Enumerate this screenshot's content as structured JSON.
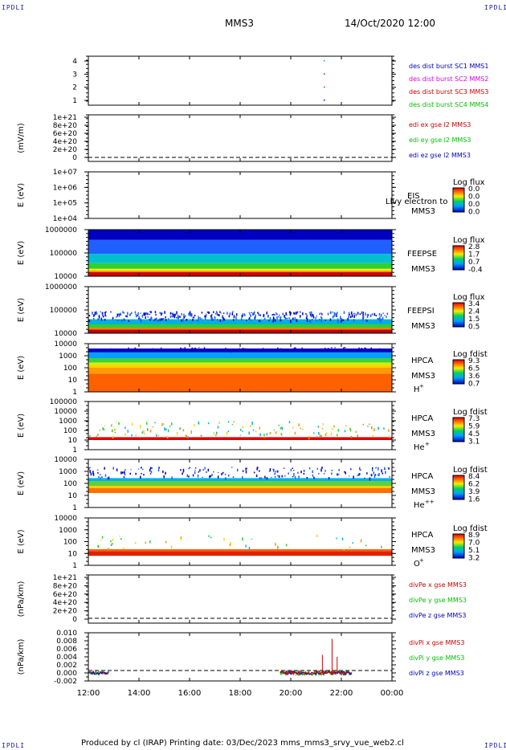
{
  "corner_labels": {
    "tl": "IPDLI",
    "tr": "IPDLI",
    "bl": "IPDLI",
    "br": "IPDLI"
  },
  "header": {
    "spacecraft": "MMS3",
    "date": "14/Oct/2020 12:00"
  },
  "footer": {
    "text": "Produced by cl (IRAP)   Printing date: 03/Dec/2023   mms_mms3_srvy_vue_web2.cl"
  },
  "x_axis": {
    "ticks": [
      "12:00",
      "14:00",
      "16:00",
      "18:00",
      "20:00",
      "22:00",
      "00:00"
    ]
  },
  "colors": {
    "red": "#d00000",
    "magenta": "#e000e0",
    "green": "#00c000",
    "blue": "#0000c0"
  },
  "chart_data": [
    {
      "type": "scatter",
      "panel": "des_dist",
      "yticks": [
        "4",
        "3",
        "2",
        "1"
      ],
      "legend": [
        {
          "label": "des dist burst SC1 MMS1",
          "color": "#0000c0"
        },
        {
          "label": "des dist burst SC2 MMS2",
          "color": "#e000e0"
        },
        {
          "label": "des dist burst SC3 MMS3",
          "color": "#d00000"
        },
        {
          "label": "des dist burst SC4 MMS4",
          "color": "#00c000"
        }
      ],
      "points": [
        {
          "time": "21:18",
          "y": 4
        },
        {
          "time": "21:18",
          "y": 3
        },
        {
          "time": "21:18",
          "y": 2
        },
        {
          "time": "21:18",
          "y": 1
        }
      ]
    },
    {
      "type": "line",
      "panel": "edi",
      "ylabel": "(mV/m)",
      "yticks": [
        "1e+21",
        "8e+20",
        "6e+20",
        "4e+20",
        "2e+20",
        "0"
      ],
      "legend": [
        {
          "label": "edi ex gse l2 MMS3",
          "color": "#d00000"
        },
        {
          "label": "edi ey gse l2 MMS3",
          "color": "#00c000"
        },
        {
          "label": "edi ez gse l2 MMS3",
          "color": "#0000c0"
        }
      ]
    },
    {
      "type": "heatmap",
      "panel": "eis",
      "ylabel": "E (eV)",
      "yticks": [
        "1e+07",
        "1e+06",
        "1e+05",
        "1e+04"
      ],
      "instrument": [
        "EIS",
        "MMS3"
      ],
      "overlay_text": "Llvy electron to",
      "colorbar": {
        "title": "Log flux",
        "ticks": [
          "0.0",
          "0.0",
          "0.0",
          "0.0"
        ]
      }
    },
    {
      "type": "heatmap",
      "panel": "feepse",
      "ylabel": "E (eV)",
      "yticks": [
        "1000000",
        "100000",
        "10000"
      ],
      "instrument": [
        "FEEPSE",
        "MMS3"
      ],
      "colorbar": {
        "title": "Log flux",
        "ticks": [
          "2.8",
          "1.7",
          "0.7",
          "-0.4"
        ]
      }
    },
    {
      "type": "heatmap",
      "panel": "feepsi",
      "ylabel": "E (eV)",
      "yticks": [
        "1000000",
        "100000",
        "10000"
      ],
      "instrument": [
        "FEEPSI",
        "MMS3"
      ],
      "colorbar": {
        "title": "Log flux",
        "ticks": [
          "3.4",
          "2.4",
          "1.5",
          "0.5"
        ]
      }
    },
    {
      "type": "heatmap",
      "panel": "hpca_h",
      "ylabel": "E (eV)",
      "yticks": [
        "10000",
        "1000",
        "100",
        "10",
        "1"
      ],
      "instrument": [
        "HPCA",
        "MMS3"
      ],
      "species": "H",
      "charge": "+",
      "colorbar": {
        "title": "Log fdist",
        "ticks": [
          "9.3",
          "6.5",
          "3.6",
          "0.7"
        ]
      }
    },
    {
      "type": "heatmap",
      "panel": "hpca_he",
      "ylabel": "E (eV)",
      "yticks": [
        "100000",
        "10000",
        "1000",
        "100",
        "10",
        "1"
      ],
      "instrument": [
        "HPCA",
        "MMS3"
      ],
      "species": "He",
      "charge": "+",
      "colorbar": {
        "title": "Log fdist",
        "ticks": [
          "7.3",
          "5.9",
          "4.5",
          "3.1"
        ]
      }
    },
    {
      "type": "heatmap",
      "panel": "hpca_hepp",
      "ylabel": "E (eV)",
      "yticks": [
        "10000",
        "1000",
        "100",
        "10",
        "1"
      ],
      "instrument": [
        "HPCA",
        "MMS3"
      ],
      "species": "He",
      "charge": "++",
      "colorbar": {
        "title": "Log fdist",
        "ticks": [
          "8.4",
          "6.2",
          "3.9",
          "1.6"
        ]
      }
    },
    {
      "type": "heatmap",
      "panel": "hpca_o",
      "ylabel": "E (eV)",
      "yticks": [
        "10000",
        "1000",
        "100",
        "10",
        "1"
      ],
      "instrument": [
        "HPCA",
        "MMS3"
      ],
      "species": "O",
      "charge": "+",
      "colorbar": {
        "title": "Log fdist",
        "ticks": [
          "8.9",
          "7.0",
          "5.1",
          "3.2"
        ]
      }
    },
    {
      "type": "line",
      "panel": "divpe",
      "ylabel": "(nPa/km)",
      "yticks": [
        "1e+21",
        "8e+20",
        "6e+20",
        "4e+20",
        "2e+20",
        "0"
      ],
      "legend": [
        {
          "label": "divPe x gse MMS3",
          "color": "#d00000"
        },
        {
          "label": "divPe y gse MMS3",
          "color": "#00c000"
        },
        {
          "label": "divPe z gse MMS3",
          "color": "#0000c0"
        }
      ]
    },
    {
      "type": "line",
      "panel": "divpi",
      "ylabel": "(nPa/km)",
      "yticks": [
        "0.010",
        "0.008",
        "0.006",
        "0.004",
        "0.002",
        "0.000",
        "-0.002"
      ],
      "ylim": [
        -0.002,
        0.01
      ],
      "legend": [
        {
          "label": "divPi x gse MMS3",
          "color": "#d00000"
        },
        {
          "label": "divPi y gse MMS3",
          "color": "#00c000"
        },
        {
          "label": "divPi z gse MMS3",
          "color": "#0000c0"
        }
      ],
      "spikes": [
        {
          "time": "21:38",
          "value": 0.0085
        },
        {
          "time": "21:15",
          "value": 0.0045
        },
        {
          "time": "21:50",
          "value": 0.004
        }
      ]
    }
  ]
}
